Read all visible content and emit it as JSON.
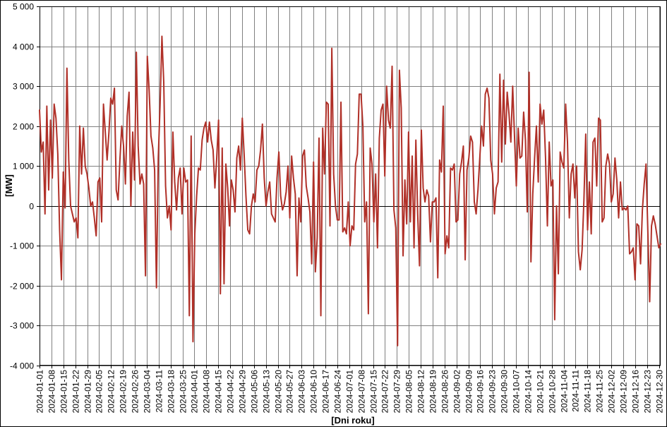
{
  "chart_data": {
    "type": "line",
    "title": "",
    "xlabel": "[Dni roku]",
    "ylabel": "[MW]",
    "ylim": [
      -4000,
      5000
    ],
    "y_ticks": [
      -4000,
      -3000,
      -2000,
      -1000,
      0,
      1000,
      2000,
      3000,
      4000,
      5000
    ],
    "y_tick_labels": [
      "-4 000",
      "-3 000",
      "-2 000",
      "-1 000",
      "0",
      "1 000",
      "2 000",
      "3 000",
      "4 000",
      "5 000"
    ],
    "x_start": "2024-01-01",
    "x_end": "2024-12-31",
    "x_tick_labels": [
      "2024-01-01",
      "2024-01-08",
      "2024-01-15",
      "2024-01-22",
      "2024-01-29",
      "2024-02-05",
      "2024-02-12",
      "2024-02-19",
      "2024-02-26",
      "2024-03-04",
      "2024-03-11",
      "2024-03-18",
      "2024-03-25",
      "2024-04-01",
      "2024-04-08",
      "2024-04-15",
      "2024-04-22",
      "2024-04-29",
      "2024-05-06",
      "2024-05-13",
      "2024-05-20",
      "2024-05-27",
      "2024-06-03",
      "2024-06-10",
      "2024-06-17",
      "2024-06-24",
      "2024-07-01",
      "2024-07-08",
      "2024-07-15",
      "2024-07-22",
      "2024-07-29",
      "2024-08-05",
      "2024-08-12",
      "2024-08-19",
      "2024-08-26",
      "2024-09-02",
      "2024-09-09",
      "2024-09-16",
      "2024-09-23",
      "2024-09-30",
      "2024-10-07",
      "2024-10-14",
      "2024-10-21",
      "2024-10-28",
      "2024-11-04",
      "2024-11-11",
      "2024-11-18",
      "2024-11-25",
      "2024-12-02",
      "2024-12-09",
      "2024-12-16",
      "2024-12-23",
      "2024-12-30"
    ],
    "grid": true,
    "legend": "none",
    "series": [
      {
        "color": "#b03028",
        "values": [
          2400,
          1350,
          1600,
          -200,
          2500,
          400,
          2150,
          700,
          2550,
          2200,
          1300,
          -600,
          -1850,
          850,
          -50,
          3450,
          1150,
          0,
          -200,
          -400,
          -300,
          -800,
          2000,
          800,
          1950,
          1000,
          800,
          450,
          0,
          100,
          -300,
          -750,
          600,
          700,
          -400,
          2550,
          1850,
          1150,
          1850,
          2700,
          2550,
          2950,
          400,
          150,
          1150,
          2000,
          1500,
          550,
          2250,
          2850,
          0,
          1850,
          650,
          3850,
          1500,
          550,
          800,
          550,
          -1750,
          3750,
          2900,
          1750,
          1450,
          900,
          -2050,
          1200,
          2550,
          4250,
          3100,
          500,
          -300,
          0,
          -600,
          1850,
          600,
          -100,
          700,
          950,
          -200,
          950,
          600,
          650,
          -2750,
          1750,
          -3400,
          -700,
          250,
          950,
          900,
          1650,
          1950,
          2100,
          1600,
          2100,
          1650,
          1400,
          450,
          1200,
          2150,
          -2200,
          1450,
          -1950,
          1050,
          450,
          -500,
          650,
          400,
          -150,
          1200,
          1500,
          900,
          2200,
          1300,
          250,
          -600,
          -700,
          0,
          300,
          100,
          900,
          1000,
          1400,
          2050,
          700,
          0,
          350,
          600,
          -200,
          -300,
          -400,
          700,
          1350,
          250,
          -100,
          50,
          350,
          1000,
          -300,
          1250,
          700,
          300,
          -1750,
          200,
          -400,
          1250,
          1400,
          500,
          200,
          -150,
          -1450,
          1100,
          -1650,
          -800,
          1700,
          -2750,
          1950,
          800,
          2600,
          2550,
          -500,
          3950,
          800,
          0,
          -350,
          -350,
          2600,
          -650,
          -550,
          -700,
          100,
          -1000,
          -500,
          -600,
          1050,
          1300,
          2800,
          2800,
          2000,
          -400,
          100,
          -2700,
          1450,
          1050,
          -400,
          800,
          -1050,
          1700,
          2400,
          2550,
          750,
          3000,
          2150,
          1950,
          3500,
          -100,
          -550,
          -3500,
          3400,
          2450,
          -1250,
          650,
          -450,
          1850,
          -400,
          1250,
          -1050,
          1650,
          -200,
          -1500,
          1900,
          450,
          100,
          400,
          250,
          -900,
          100,
          100,
          200,
          -1800,
          1150,
          850,
          2500,
          -1200,
          -750,
          -1050,
          950,
          900,
          1050,
          -400,
          -350,
          800,
          1100,
          1500,
          -1350,
          900,
          1200,
          1750,
          1600,
          100,
          -200,
          400,
          1200,
          2000,
          1500,
          2800,
          2950,
          2700,
          1150,
          800,
          -200,
          450,
          600,
          3300,
          1100,
          3150,
          1550,
          2850,
          2300,
          1600,
          3000,
          1750,
          500,
          1950,
          1200,
          1250,
          2350,
          1650,
          -150,
          3350,
          -1400,
          300,
          1200,
          2000,
          600,
          2550,
          2050,
          2400,
          1200,
          -500,
          1600,
          500,
          650,
          -2850,
          0,
          -1700,
          1350,
          1100,
          950,
          2550,
          1600,
          -300,
          800,
          1050,
          200,
          1000,
          -1150,
          -1600,
          -1100,
          150,
          1800,
          -600,
          600,
          -700,
          1600,
          1700,
          500,
          2200,
          2150,
          -400,
          -300,
          1000,
          1300,
          1050,
          100,
          300,
          1200,
          650,
          -300,
          600,
          -100,
          -50,
          -100,
          0,
          -1200,
          -1150,
          -1050,
          -1850,
          -450,
          -500,
          -1450,
          -100,
          550,
          1050,
          -650,
          -2400,
          -500,
          -250,
          -450,
          -750,
          -1050,
          -950
        ]
      }
    ]
  }
}
